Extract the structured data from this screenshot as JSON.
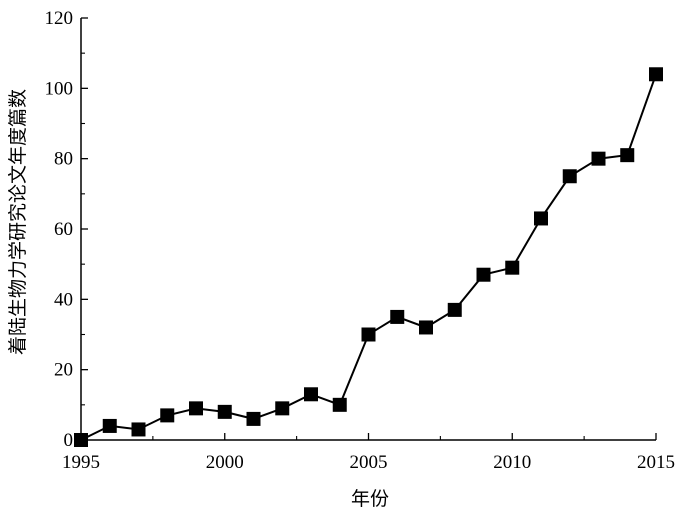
{
  "chart_data": {
    "type": "line",
    "title": "",
    "xlabel": "年份",
    "ylabel": "着陆生物力学研究论文年度篇数",
    "xlim": [
      1995,
      2015
    ],
    "ylim": [
      0,
      120
    ],
    "x_ticks": [
      "1995",
      "2000",
      "2005",
      "2010",
      "2015"
    ],
    "y_ticks": [
      "0",
      "20",
      "40",
      "60",
      "80",
      "100",
      "120"
    ],
    "grid": false,
    "marker": "square",
    "series": [
      {
        "x": [
          1995,
          1996,
          1997,
          1998,
          1999,
          2000,
          2001,
          2002,
          2003,
          2004,
          2005,
          2006,
          2007,
          2008,
          2009,
          2010,
          2011,
          2012,
          2013,
          2014,
          2015
        ],
        "values": [
          0,
          4,
          3,
          7,
          9,
          8,
          6,
          9,
          13,
          10,
          30,
          35,
          32,
          37,
          47,
          49,
          63,
          75,
          80,
          81,
          104
        ]
      }
    ],
    "colors": {
      "line": "#000000",
      "marker": "#000000"
    }
  }
}
